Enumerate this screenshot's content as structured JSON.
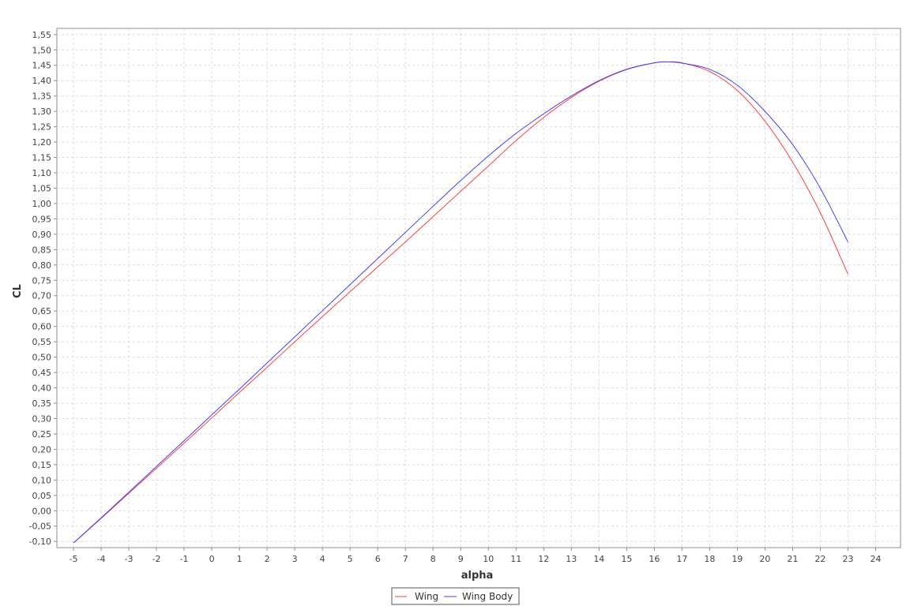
{
  "chart_data": {
    "type": "line",
    "title": "",
    "xlabel": "alpha",
    "ylabel": "CL",
    "xlim": [
      -5.6,
      24.9
    ],
    "ylim": [
      -0.12,
      1.57
    ],
    "x_ticks": [
      -5,
      -4,
      -3,
      -2,
      -1,
      0,
      1,
      2,
      3,
      4,
      5,
      6,
      7,
      8,
      9,
      10,
      11,
      12,
      13,
      14,
      15,
      16,
      17,
      18,
      19,
      20,
      21,
      22,
      23,
      24
    ],
    "y_ticks": [
      "-0,10",
      "-0,05",
      "0,00",
      "0,05",
      "0,10",
      "0,15",
      "0,20",
      "0,25",
      "0,30",
      "0,35",
      "0,40",
      "0,45",
      "0,50",
      "0,55",
      "0,60",
      "0,65",
      "0,70",
      "0,75",
      "0,80",
      "0,85",
      "0,90",
      "0,95",
      "1,00",
      "1,05",
      "1,10",
      "1,15",
      "1,20",
      "1,25",
      "1,30",
      "1,35",
      "1,40",
      "1,45",
      "1,50",
      "1,55"
    ],
    "grid": true,
    "legend_position": "bottom-center",
    "series": [
      {
        "name": "Wing",
        "color": "#ff4040",
        "x": [
          -5,
          -4,
          -3,
          -2,
          -1,
          0,
          1,
          2,
          3,
          4,
          5,
          6,
          7,
          8,
          9,
          10,
          11,
          12,
          13,
          14,
          15,
          16,
          16.5,
          17,
          18,
          19,
          20,
          21,
          22,
          23
        ],
        "y": [
          -0.105,
          -0.025,
          0.057,
          0.138,
          0.22,
          0.302,
          0.385,
          0.467,
          0.55,
          0.632,
          0.713,
          0.794,
          0.875,
          0.957,
          1.04,
          1.122,
          1.205,
          1.28,
          1.345,
          1.398,
          1.436,
          1.458,
          1.461,
          1.458,
          1.43,
          1.368,
          1.268,
          1.135,
          0.97,
          0.77
        ]
      },
      {
        "name": "Wing Body",
        "color": "#4040ff",
        "x": [
          -5,
          -4,
          -3,
          -2,
          -1,
          0,
          1,
          2,
          3,
          4,
          5,
          6,
          7,
          8,
          9,
          10,
          11,
          12,
          13,
          14,
          15,
          16,
          16.5,
          17,
          18,
          19,
          20,
          21,
          22,
          23
        ],
        "y": [
          -0.105,
          -0.023,
          0.06,
          0.144,
          0.228,
          0.312,
          0.396,
          0.481,
          0.566,
          0.651,
          0.736,
          0.821,
          0.906,
          0.991,
          1.075,
          1.155,
          1.228,
          1.292,
          1.35,
          1.4,
          1.437,
          1.458,
          1.461,
          1.457,
          1.437,
          1.385,
          1.3,
          1.192,
          1.05,
          0.875
        ]
      }
    ]
  }
}
